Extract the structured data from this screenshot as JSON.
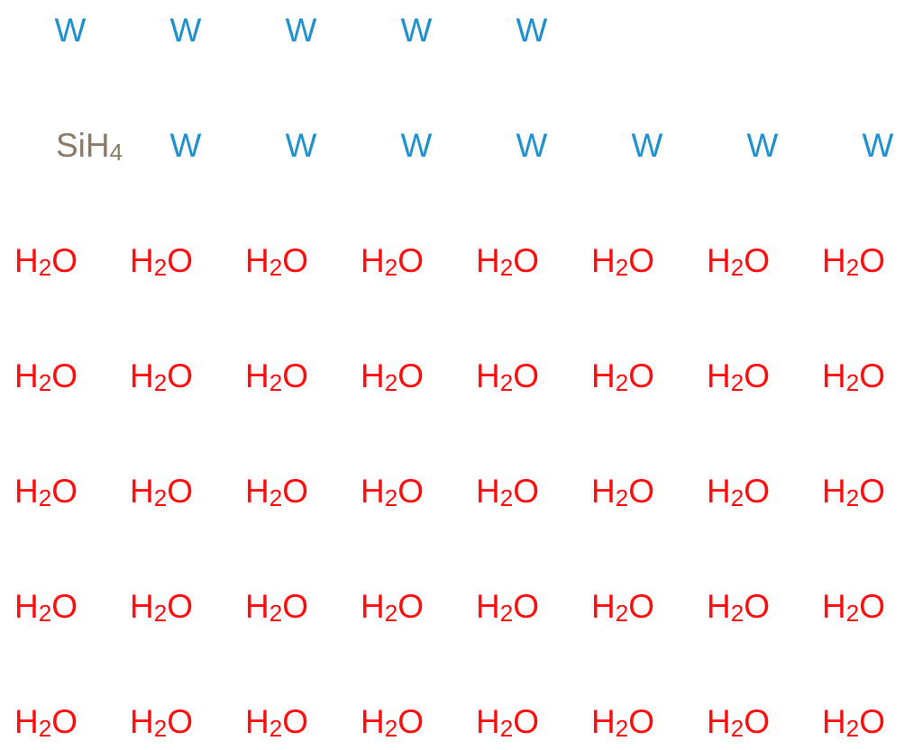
{
  "rows": [
    [
      "W",
      "W",
      "W",
      "W",
      "W"
    ],
    [
      "SiH4",
      "W",
      "W",
      "W",
      "W",
      "W",
      "W",
      "W"
    ],
    [
      "H2O",
      "H2O",
      "H2O",
      "H2O",
      "H2O",
      "H2O",
      "H2O",
      "H2O"
    ],
    [
      "H2O",
      "H2O",
      "H2O",
      "H2O",
      "H2O",
      "H2O",
      "H2O",
      "H2O"
    ],
    [
      "H2O",
      "H2O",
      "H2O",
      "H2O",
      "H2O",
      "H2O",
      "H2O",
      "H2O"
    ],
    [
      "H2O",
      "H2O",
      "H2O",
      "H2O",
      "H2O",
      "H2O",
      "H2O",
      "H2O"
    ],
    [
      "H2O",
      "H2O",
      "H2O",
      "H2O",
      "H2O",
      "H2O",
      "H2O",
      "H2O"
    ]
  ]
}
